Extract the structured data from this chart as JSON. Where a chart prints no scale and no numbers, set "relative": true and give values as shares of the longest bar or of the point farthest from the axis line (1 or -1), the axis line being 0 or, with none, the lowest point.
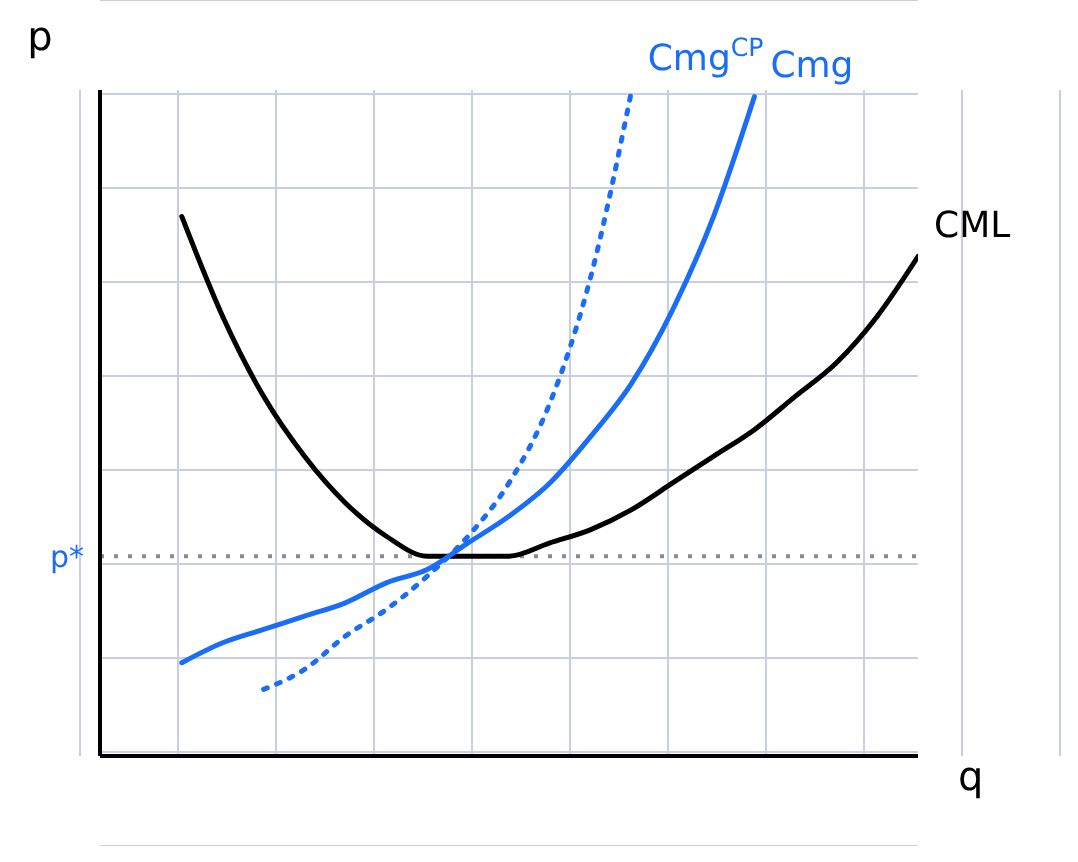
{
  "chart_data": {
    "type": "line",
    "relative": true,
    "xlabel": "q",
    "ylabel": "p",
    "grid": true,
    "tick_labels": false,
    "marker": "none",
    "categories": [
      null,
      null,
      null,
      null,
      null,
      null,
      null,
      null,
      null,
      null,
      null,
      null,
      null,
      null,
      null,
      null,
      null,
      null,
      null,
      null,
      null
    ],
    "series": [
      {
        "name": "CML",
        "color": "#000000",
        "line_style": "solid",
        "values": [
          null,
          null,
          0.81,
          0.66,
          0.54,
          0.45,
          0.38,
          0.33,
          0.3,
          0.3,
          0.3,
          0.32,
          0.34,
          0.37,
          0.41,
          0.45,
          0.49,
          0.54,
          0.59,
          0.66,
          0.75
        ]
      },
      {
        "name": "Cmg",
        "color": "#1a6ef5",
        "line_style": "solid",
        "values": [
          null,
          null,
          0.14,
          0.17,
          0.19,
          0.21,
          0.23,
          0.26,
          0.28,
          0.32,
          0.36,
          0.41,
          0.48,
          0.56,
          0.67,
          0.81,
          0.99,
          null,
          null,
          null,
          null
        ]
      },
      {
        "name": "Cmg$^{CP}$",
        "color": "#1a6ef5",
        "line_style": "dotted",
        "values": [
          null,
          null,
          null,
          null,
          0.1,
          0.13,
          0.18,
          0.22,
          0.27,
          0.33,
          0.41,
          0.53,
          0.72,
          1.0,
          null,
          null,
          null,
          null,
          null,
          null,
          null
        ]
      }
    ],
    "ref_lines": [
      {
        "axis": "y",
        "value": 0.3,
        "label": "p*",
        "color": "#8a8a9a",
        "line_style": "dotted"
      }
    ]
  }
}
